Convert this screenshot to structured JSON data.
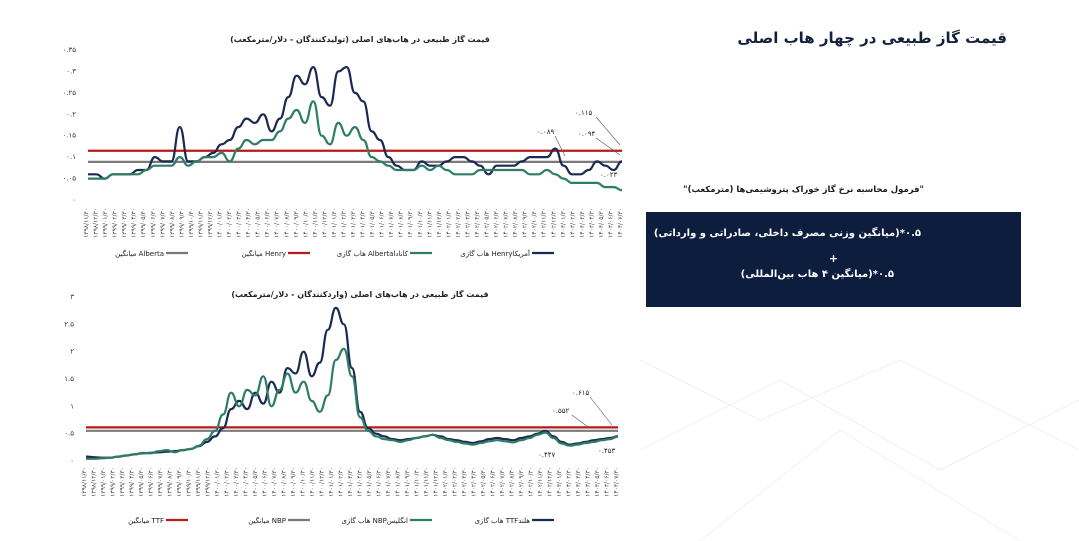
{
  "page_title": "قیمت گاز طبیعی در چهار هاب اصلی",
  "formula": {
    "caption": "\"فرمول محاسبه نرخ گاز خوراک پتروشیمی‌ها (مترمکعب)\"",
    "line1": "۰.۵*(میانگین وزنی مصرف داخلی، صادراتی و وارداتی)",
    "plus": "+",
    "line2": "۰.۵*(میانگین ۴ هاب بین‌المللی)"
  },
  "colors": {
    "navy": "#1b2a52",
    "green": "#2e7d65",
    "red": "#b71c1c",
    "gray": "#7a7a7a",
    "box_bg": "#0c1d3e"
  },
  "chart_data": [
    {
      "type": "line",
      "title": "قیمت گاز طبیعی در هاب‌های اصلی (تولیدکنندگان - دلار/مترمکعب)",
      "ylim": [
        0,
        0.35
      ],
      "y_ticks": [
        "۰",
        "۰.۰۵",
        "۰.۱",
        "۰.۱۵",
        "۰.۲",
        "۰.۲۵",
        "۰.۳",
        "۰.۳۵"
      ],
      "y_tick_values": [
        0,
        0.05,
        0.1,
        0.15,
        0.2,
        0.25,
        0.3,
        0.35
      ],
      "x_ticks": [
        "۱۳۹۸/۱۱/۳۰",
        "۱۳۹۸/۱۲/۳۰",
        "۱۳۹۹/۰۱/۳۰",
        "۱۳۹۹/۰۲/۳۰",
        "۱۳۹۹/۰۳/۳۰",
        "۱۳۹۹/۰۴/۳۰",
        "۱۳۹۹/۰۵/۳۰",
        "۱۳۹۹/۰۶/۳۰",
        "۱۳۹۹/۰۷/۳۰",
        "۱۳۹۹/۰۸/۳۰",
        "۱۳۹۹/۰۹/۳۰",
        "۱۳۹۹/۱۰/۳۰",
        "۱۳۹۹/۱۱/۳۰",
        "۱۳۹۹/۱۲/۳۰",
        "۱۴۰۰/۰۱/۳۰",
        "۱۴۰۰/۰۲/۳۰",
        "۱۴۰۰/۰۳/۳۰",
        "۱۴۰۰/۰۴/۳۰",
        "۱۴۰۰/۰۵/۳۰",
        "۱۴۰۰/۰۶/۳۰",
        "۱۴۰۰/۰۷/۳۰",
        "۱۴۰۰/۰۸/۳۰",
        "۱۴۰۰/۰۹/۳۰",
        "۱۴۰۰/۱۰/۳۰",
        "۱۴۰۰/۱۱/۳۰",
        "۱۴۰۰/۱۲/۳۰",
        "۱۴۰۱/۰۱/۳۰",
        "۱۴۰۱/۰۲/۳۰",
        "۱۴۰۱/۰۳/۳۰",
        "۱۴۰۱/۰۴/۳۰",
        "۱۴۰۱/۰۵/۳۰",
        "۱۴۰۱/۰۶/۳۰",
        "۱۴۰۱/۰۷/۳۰",
        "۱۴۰۱/۰۸/۳۰",
        "۱۴۰۱/۰۹/۳۰",
        "۱۴۰۱/۱۰/۳۰",
        "۱۴۰۱/۱۱/۳۰",
        "۱۴۰۱/۱۲/۳۰",
        "۱۴۰۲/۰۱/۳۰",
        "۱۴۰۲/۰۲/۳۰",
        "۱۴۰۲/۰۳/۳۰",
        "۱۴۰۲/۰۴/۳۰",
        "۱۴۰۲/۰۵/۳۰",
        "۱۴۰۲/۰۶/۳۰",
        "۱۴۰۲/۰۷/۳۰",
        "۱۴۰۲/۰۸/۳۰",
        "۱۴۰۲/۰۹/۳۰",
        "۱۴۰۲/۱۰/۳۰",
        "۱۴۰۲/۱۱/۳۰",
        "۱۴۰۲/۱۲/۳۰",
        "۱۴۰۳/۰۱/۳۰",
        "۱۴۰۳/۰۲/۳۰",
        "۱۴۰۳/۰۳/۳۰",
        "۱۴۰۳/۰۴/۳۰",
        "۱۴۰۳/۰۵/۳۰",
        "۱۴۰۳/۰۶/۳۰",
        "۱۴۰۳/۰۷/۳۰"
      ],
      "series": [
        {
          "name": "هاب گازی Henryآمریکا",
          "color": "#1b2a52",
          "kind": "line",
          "values": [
            0.06,
            0.06,
            0.05,
            0.06,
            0.06,
            0.06,
            0.07,
            0.07,
            0.1,
            0.09,
            0.09,
            0.17,
            0.09,
            0.09,
            0.1,
            0.11,
            0.13,
            0.14,
            0.17,
            0.19,
            0.18,
            0.2,
            0.16,
            0.19,
            0.24,
            0.29,
            0.27,
            0.31,
            0.24,
            0.22,
            0.3,
            0.31,
            0.25,
            0.23,
            0.16,
            0.14,
            0.1,
            0.08,
            0.07,
            0.07,
            0.09,
            0.08,
            0.08,
            0.09,
            0.1,
            0.1,
            0.09,
            0.08,
            0.06,
            0.08,
            0.08,
            0.08,
            0.09,
            0.1,
            0.1,
            0.1,
            0.12,
            0.08,
            0.06,
            0.06,
            0.07,
            0.09,
            0.08,
            0.07,
            0.09
          ]
        },
        {
          "name": "هاب گازی Albertaکانادا",
          "color": "#2e7d65",
          "kind": "line",
          "values": [
            0.05,
            0.05,
            0.05,
            0.06,
            0.06,
            0.06,
            0.06,
            0.07,
            0.08,
            0.08,
            0.08,
            0.1,
            0.08,
            0.09,
            0.1,
            0.1,
            0.11,
            0.09,
            0.12,
            0.14,
            0.13,
            0.14,
            0.14,
            0.16,
            0.19,
            0.21,
            0.18,
            0.23,
            0.15,
            0.13,
            0.18,
            0.15,
            0.17,
            0.14,
            0.1,
            0.09,
            0.08,
            0.07,
            0.07,
            0.07,
            0.08,
            0.07,
            0.08,
            0.07,
            0.06,
            0.06,
            0.06,
            0.07,
            0.07,
            0.07,
            0.07,
            0.07,
            0.07,
            0.06,
            0.06,
            0.07,
            0.06,
            0.05,
            0.04,
            0.04,
            0.04,
            0.04,
            0.03,
            0.03,
            0.023
          ]
        },
        {
          "name": "میانگین Henry",
          "color": "#b71c1c",
          "kind": "avg",
          "value": 0.115
        },
        {
          "name": "میانگین Alberta",
          "color": "#7a7a7a",
          "kind": "avg",
          "value": 0.089
        }
      ],
      "annotations": [
        "۰.۱۱۵",
        "۰.۰۹۴",
        "۰.۰۸۹",
        "۰.۰۲۳"
      ]
    },
    {
      "type": "line",
      "title": "قیمت گاز طبیعی در هاب‌های اصلی (واردکنندگان - دلار/مترمکعب)",
      "ylim": [
        0,
        3
      ],
      "y_ticks": [
        "۰",
        "۰.۵",
        "۱",
        "۱.۵",
        "۲",
        "۲.۵",
        "۳"
      ],
      "y_tick_values": [
        0,
        0.5,
        1,
        1.5,
        2,
        2.5,
        3
      ],
      "x_ticks": [
        "۱۳۹۸/۱۱/۳۰",
        "۱۳۹۸/۱۲/۳۰",
        "۱۳۹۹/۰۱/۳۰",
        "۱۳۹۹/۰۲/۳۰",
        "۱۳۹۹/۰۳/۳۰",
        "۱۳۹۹/۰۴/۳۰",
        "۱۳۹۹/۰۵/۳۰",
        "۱۳۹۹/۰۶/۳۰",
        "۱۳۹۹/۰۷/۳۰",
        "۱۳۹۹/۰۸/۳۰",
        "۱۳۹۹/۰۹/۳۰",
        "۱۳۹۹/۱۰/۳۰",
        "۱۳۹۹/۱۱/۳۰",
        "۱۳۹۹/۱۲/۳۰",
        "۱۴۰۰/۰۱/۳۰",
        "۱۴۰۰/۰۲/۳۰",
        "۱۴۰۰/۰۳/۳۰",
        "۱۴۰۰/۰۴/۳۰",
        "۱۴۰۰/۰۵/۳۰",
        "۱۴۰۰/۰۶/۳۰",
        "۱۴۰۰/۰۷/۳۰",
        "۱۴۰۰/۰۸/۳۰",
        "۱۴۰۰/۰۹/۳۰",
        "۱۴۰۰/۱۰/۳۰",
        "۱۴۰۰/۱۱/۳۰",
        "۱۴۰۰/۱۲/۳۰",
        "۱۴۰۱/۰۱/۳۰",
        "۱۴۰۱/۰۲/۳۰",
        "۱۴۰۱/۰۳/۳۰",
        "۱۴۰۱/۰۴/۳۰",
        "۱۴۰۱/۰۵/۳۰",
        "۱۴۰۱/۰۶/۳۰",
        "۱۴۰۱/۰۷/۳۰",
        "۱۴۰۱/۰۸/۳۰",
        "۱۴۰۱/۰۹/۳۰",
        "۱۴۰۱/۱۰/۳۰",
        "۱۴۰۱/۱۱/۳۰",
        "۱۴۰۱/۱۲/۳۰",
        "۱۴۰۲/۰۱/۳۰",
        "۱۴۰۲/۰۲/۳۰",
        "۱۴۰۲/۰۳/۳۰",
        "۱۴۰۲/۰۴/۳۰",
        "۱۴۰۲/۰۵/۳۰",
        "۱۴۰۲/۰۶/۳۰",
        "۱۴۰۲/۰۷/۳۰",
        "۱۴۰۲/۰۸/۳۰",
        "۱۴۰۲/۰۹/۳۰",
        "۱۴۰۲/۱۰/۳۰",
        "۱۴۰۲/۱۱/۳۰",
        "۱۴۰۲/۱۲/۳۰",
        "۱۴۰۳/۰۱/۳۰",
        "۱۴۰۳/۰۲/۳۰",
        "۱۴۰۳/۰۳/۳۰",
        "۱۴۰۳/۰۴/۳۰",
        "۱۴۰۳/۰۵/۳۰",
        "۱۴۰۳/۰۶/۳۰",
        "۱۴۰۳/۰۷/۳۰"
      ],
      "series": [
        {
          "name": "هاب گازی TTFهلند",
          "color": "#1b2a52",
          "kind": "line",
          "values": [
            0.08,
            0.07,
            0.06,
            0.06,
            0.08,
            0.1,
            0.12,
            0.14,
            0.15,
            0.16,
            0.17,
            0.18,
            0.2,
            0.22,
            0.27,
            0.35,
            0.45,
            0.6,
            0.95,
            1.1,
            0.95,
            1.25,
            1.05,
            1.45,
            1.25,
            1.7,
            1.6,
            2.0,
            1.55,
            1.8,
            2.4,
            2.8,
            2.5,
            1.7,
            0.9,
            0.6,
            0.5,
            0.45,
            0.4,
            0.38,
            0.4,
            0.42,
            0.45,
            0.48,
            0.45,
            0.4,
            0.38,
            0.35,
            0.33,
            0.36,
            0.4,
            0.42,
            0.4,
            0.38,
            0.42,
            0.45,
            0.5,
            0.55,
            0.45,
            0.35,
            0.3,
            0.32,
            0.35,
            0.38,
            0.4,
            0.42,
            0.453
          ]
        },
        {
          "name": "هاب گازی NBPانگلیس",
          "color": "#2e7d65",
          "kind": "line",
          "values": [
            0.04,
            0.04,
            0.05,
            0.06,
            0.08,
            0.1,
            0.12,
            0.15,
            0.14,
            0.18,
            0.2,
            0.16,
            0.2,
            0.22,
            0.28,
            0.4,
            0.55,
            0.85,
            1.25,
            1.0,
            1.3,
            1.2,
            1.55,
            1.0,
            1.3,
            1.6,
            1.25,
            1.45,
            1.1,
            0.9,
            1.2,
            1.85,
            2.05,
            1.55,
            0.8,
            0.55,
            0.45,
            0.4,
            0.38,
            0.35,
            0.38,
            0.42,
            0.45,
            0.48,
            0.42,
            0.38,
            0.35,
            0.32,
            0.3,
            0.33,
            0.36,
            0.38,
            0.36,
            0.34,
            0.38,
            0.42,
            0.48,
            0.52,
            0.42,
            0.32,
            0.28,
            0.3,
            0.33,
            0.35,
            0.38,
            0.4,
            0.447
          ]
        },
        {
          "name": "میانگین NBP",
          "color": "#7a7a7a",
          "kind": "avg",
          "value": 0.552
        },
        {
          "name": "میانگین TTF",
          "color": "#b71c1c",
          "kind": "avg",
          "value": 0.615
        }
      ],
      "annotations": [
        "۰.۶۱۵",
        "۰.۵۵۲",
        "۰.۴۴۷",
        "۰.۴۵۳"
      ]
    }
  ]
}
